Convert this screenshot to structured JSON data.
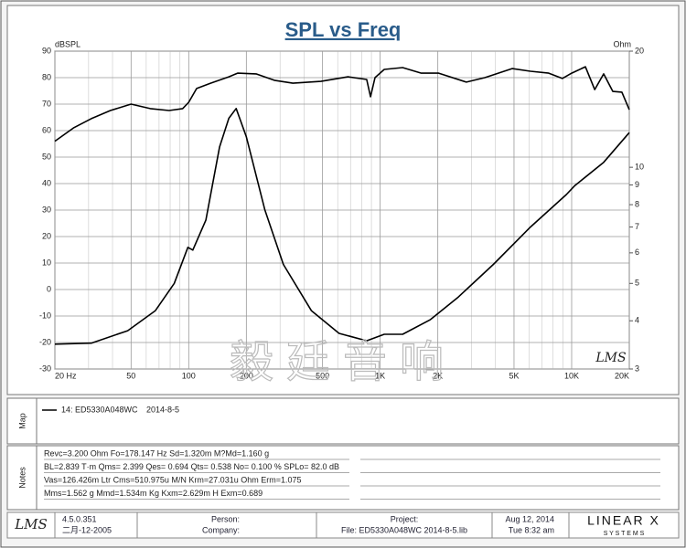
{
  "chart_data": {
    "type": "line",
    "title": "SPL vs Freq",
    "ylabel": "dBSPL",
    "y2label": "Ohm",
    "xscale": "log",
    "y2scale": "log",
    "grid": true,
    "xlim": [
      20,
      20000
    ],
    "xticks": [
      {
        "value": 20,
        "label": "20 Hz"
      },
      50,
      100,
      200,
      500,
      {
        "value": 1000,
        "label": "1K"
      },
      {
        "value": 2000,
        "label": "2K"
      },
      {
        "value": 5000,
        "label": "5K"
      },
      {
        "value": 10000,
        "label": "10K"
      },
      {
        "value": 20000,
        "label": "20K"
      }
    ],
    "xgrid_minor": [
      30,
      40,
      60,
      70,
      80,
      90,
      300,
      400,
      600,
      700,
      800,
      900,
      3000,
      4000,
      6000,
      7000,
      8000,
      9000
    ],
    "ylim": [
      -30,
      90
    ],
    "yticks": [
      -30,
      -20,
      -10,
      0,
      10,
      20,
      30,
      40,
      50,
      60,
      70,
      80,
      90
    ],
    "y2lim": [
      3,
      20
    ],
    "y2ticks": [
      3,
      4,
      5,
      6,
      7,
      8,
      9,
      10,
      20
    ],
    "series": [
      {
        "name": "14: ED5330A048WC",
        "color": "#000000",
        "x": [
          20,
          25,
          31,
          39,
          50,
          63,
          79,
          93,
          100,
          110,
          130,
          162,
          180,
          225,
          280,
          350,
          490,
          680,
          850,
          890,
          940,
          1050,
          1310,
          1640,
          2020,
          2820,
          3520,
          4890,
          6090,
          7590,
          8940,
          10000,
          11800,
          13200,
          14700,
          16400,
          18300,
          20000
        ],
        "values": [
          56,
          61,
          64.5,
          67.6,
          70,
          68.3,
          67.6,
          68.3,
          70.7,
          75.9,
          77.9,
          80.3,
          81.7,
          81.4,
          79,
          77.9,
          78.6,
          80.3,
          79.3,
          72.8,
          80,
          83.1,
          83.8,
          81.7,
          81.7,
          78.3,
          80,
          83.4,
          82.4,
          81.7,
          79.7,
          81.7,
          84.1,
          75.5,
          81.4,
          74.8,
          74.5,
          67.9
        ]
      },
      {
        "color": "#000000",
        "axis": "y2",
        "x": [
          20,
          31,
          48,
          67,
          84,
          99,
          105,
          123,
          145,
          162,
          177,
          200,
          250,
          312,
          437,
          610,
          850,
          1050,
          1310,
          1830,
          2560,
          3900,
          6090,
          9380,
          10400,
          14700,
          20000
        ],
        "values": [
          3.48,
          3.5,
          3.77,
          4.25,
          5.0,
          6.2,
          6.1,
          7.3,
          11.3,
          13.4,
          14.2,
          12.0,
          7.75,
          5.6,
          4.25,
          3.71,
          3.55,
          3.69,
          3.69,
          4.03,
          4.61,
          5.6,
          7.0,
          8.5,
          8.97,
          10.3,
          12.3
        ]
      }
    ],
    "annotations": [
      "LMS",
      "毅廷音响"
    ]
  },
  "map": {
    "label": "Map",
    "date": "2014-8-5"
  },
  "notes": {
    "label": "Notes",
    "lines": [
      "Revc=3.200 Ohm  Fo=178.147 Hz  Sd=1.320m M?Md=1.160 g",
      "BL=2.839 T·m  Qms= 2.399  Qes= 0.694  Qts= 0.538  No= 0.100 %  SPLo= 82.0 dB",
      "Vas=126.426m Ltr  Cms=510.975u M/N  Krm=27.031u Ohm  Erm=1.075",
      "Mms=1.562 g  Mmd=1.534m Kg  Kxm=2.629m H  Exm=0.689"
    ]
  },
  "footer": {
    "logo": "LMS",
    "version": "4.5.0.351",
    "build_date": "二月-12-2005",
    "person": "Person:",
    "company": "Company:",
    "project": "Project:",
    "file": "File: ED5330A048WC   2014-8-5.lib",
    "date": "Aug 12, 2014",
    "time": "Tue  8:32 am",
    "brand": "LINEAR X",
    "brand_sub": "S Y S T E M S"
  }
}
